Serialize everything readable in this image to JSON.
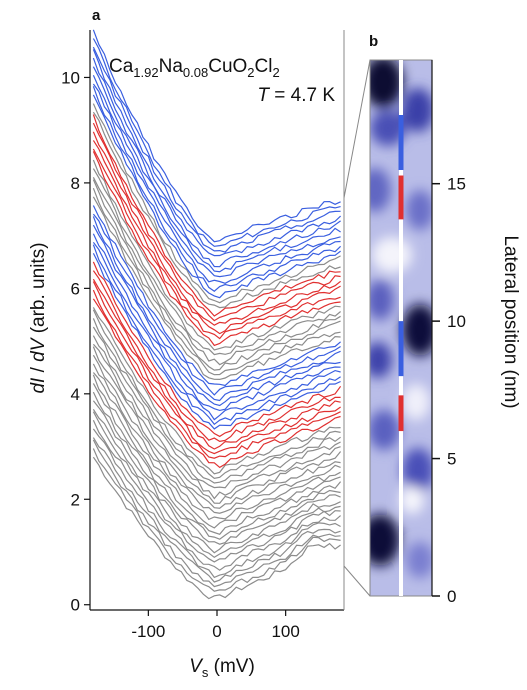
{
  "panel_a_label": "a",
  "panel_b_label": "b",
  "annotation": {
    "compound": {
      "c1": "Ca",
      "s1": "1.92",
      "c2": "Na",
      "s2": "0.08",
      "c3": "CuO",
      "s3": "2",
      "c4": "Cl",
      "s4": "2"
    },
    "temperature": {
      "symbol": "T",
      "rest": " = 4.7 K"
    }
  },
  "colors": {
    "gray": "#8c8c8c",
    "blue": "#3a5fe0",
    "red": "#e03030",
    "axis": "#111111",
    "frame": "#888888"
  },
  "chart_data": [
    {
      "type": "line",
      "panel": "a",
      "xlabel": {
        "main": "V",
        "sub": "s",
        "unit": " (mV)"
      },
      "ylabel": {
        "p1": "dI",
        "p2": " / ",
        "p3": "dV",
        "p4": " (arb. units)"
      },
      "xlim": [
        -185,
        185
      ],
      "ylim": [
        -0.1,
        10.9
      ],
      "x_ticks": [
        -100,
        0,
        100
      ],
      "x_tick_labels": [
        "-100",
        "0",
        "100"
      ],
      "y_ticks": [
        0,
        2,
        4,
        6,
        8,
        10
      ],
      "y_tick_labels": [
        "0",
        "2",
        "4",
        "6",
        "8",
        "10"
      ],
      "grid": false,
      "curve_count": 60,
      "curve_offset_step": 0.115,
      "color_segments": [
        {
          "color": "gray",
          "from": 0,
          "to": 21
        },
        {
          "color": "red",
          "from": 22,
          "to": 27
        },
        {
          "color": "blue",
          "from": 28,
          "to": 35
        },
        {
          "color": "gray",
          "from": 36,
          "to": 41
        },
        {
          "color": "red",
          "from": 42,
          "to": 47
        },
        {
          "color": "gray",
          "from": 48,
          "to": 49
        },
        {
          "color": "blue",
          "from": 50,
          "to": 59
        }
      ],
      "approx_curves": {
        "bottom": {
          "at_minus180": 2.9,
          "at_minus50": 0.8,
          "at_0": 0.1,
          "at_50": 0.5,
          "at_100": 0.7,
          "at_180": 1.0
        },
        "top_blue": {
          "at_minus180": 10.7,
          "at_minus50": 7.4,
          "at_0": 6.5,
          "at_50": 6.8,
          "at_100": 7.0,
          "at_180": 7.5
        }
      }
    },
    {
      "type": "heatmap",
      "panel": "b",
      "ylabel": "Lateral position (nm)",
      "ylim": [
        0,
        19.5
      ],
      "y_ticks": [
        0,
        5,
        10,
        15
      ],
      "y_tick_labels": [
        "0",
        "5",
        "10",
        "15"
      ],
      "red_marks_nm": [
        [
          6.0,
          7.3
        ],
        [
          13.7,
          15.3
        ]
      ],
      "blue_marks_nm": [
        [
          8.0,
          10.0
        ],
        [
          15.5,
          17.5
        ]
      ],
      "dark_spots_nm": [
        1.5,
        10.2,
        18.5
      ]
    }
  ]
}
